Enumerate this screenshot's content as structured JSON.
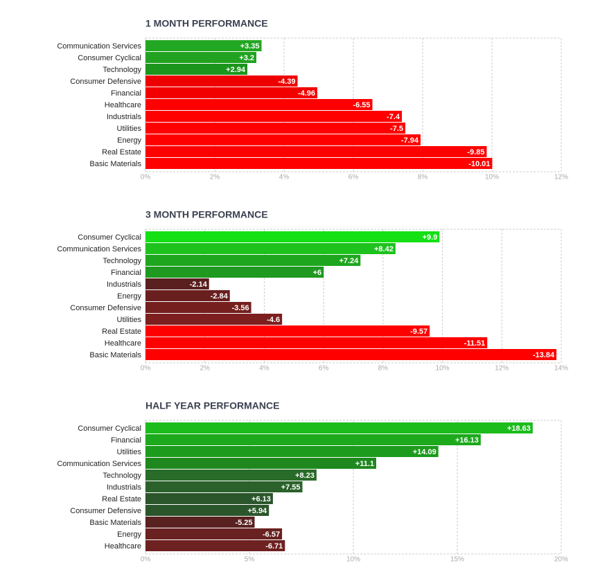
{
  "chart_data": [
    {
      "type": "bar",
      "orientation": "horizontal",
      "title": "1 MONTH PERFORMANCE",
      "categories": [
        "Communication Services",
        "Consumer Cyclical",
        "Technology",
        "Consumer Defensive",
        "Financial",
        "Healthcare",
        "Industrials",
        "Utilities",
        "Energy",
        "Real Estate",
        "Basic Materials"
      ],
      "values": [
        3.35,
        3.2,
        2.94,
        -4.39,
        -4.96,
        -6.55,
        -7.4,
        -7.5,
        -7.94,
        -9.85,
        -10.01
      ],
      "value_labels": [
        "+3.35",
        "+3.2",
        "+2.94",
        "-4.39",
        "-4.96",
        "-6.55",
        "-7.4",
        "-7.5",
        "-7.94",
        "-9.85",
        "-10.01"
      ],
      "colors": [
        "#22a722",
        "#21a321",
        "#1c951c",
        "#ee0000",
        "#f20000",
        "#ff0000",
        "#ff0000",
        "#ff0000",
        "#ff0000",
        "#ff0000",
        "#ff0000"
      ],
      "xlim": [
        0,
        12
      ],
      "xticks": [
        {
          "value": 0,
          "label": "0%"
        },
        {
          "value": 2,
          "label": "2%"
        },
        {
          "value": 4,
          "label": "4%"
        },
        {
          "value": 6,
          "label": "6%"
        },
        {
          "value": 8,
          "label": "8%"
        },
        {
          "value": 10,
          "label": "10%"
        },
        {
          "value": 12,
          "label": "12%"
        }
      ],
      "grid": true
    },
    {
      "type": "bar",
      "orientation": "horizontal",
      "title": "3 MONTH PERFORMANCE",
      "categories": [
        "Consumer Cyclical",
        "Communication Services",
        "Technology",
        "Financial",
        "Industrials",
        "Energy",
        "Consumer Defensive",
        "Utilities",
        "Real Estate",
        "Healthcare",
        "Basic Materials"
      ],
      "values": [
        9.9,
        8.42,
        7.24,
        6,
        -2.14,
        -2.84,
        -3.56,
        -4.6,
        -9.57,
        -11.51,
        -13.84
      ],
      "value_labels": [
        "+9.9",
        "+8.42",
        "+7.24",
        "+6",
        "-2.14",
        "-2.84",
        "-3.56",
        "-4.6",
        "-9.57",
        "-11.51",
        "-13.84"
      ],
      "colors": [
        "#14e014",
        "#1dc21d",
        "#1ea61e",
        "#1f991f",
        "#5a1f1f",
        "#6a1f1f",
        "#751f1f",
        "#7e1f1f",
        "#ff0000",
        "#ff0000",
        "#ff0000"
      ],
      "xlim": [
        0,
        14
      ],
      "xticks": [
        {
          "value": 0,
          "label": "0%"
        },
        {
          "value": 2,
          "label": "2%"
        },
        {
          "value": 4,
          "label": "4%"
        },
        {
          "value": 6,
          "label": "6%"
        },
        {
          "value": 8,
          "label": "8%"
        },
        {
          "value": 10,
          "label": "10%"
        },
        {
          "value": 12,
          "label": "12%"
        },
        {
          "value": 14,
          "label": "14%"
        }
      ],
      "grid": true
    },
    {
      "type": "bar",
      "orientation": "horizontal",
      "title": "HALF YEAR PERFORMANCE",
      "categories": [
        "Consumer Cyclical",
        "Financial",
        "Utilities",
        "Communication Services",
        "Technology",
        "Industrials",
        "Real Estate",
        "Consumer Defensive",
        "Basic Materials",
        "Energy",
        "Healthcare"
      ],
      "values": [
        18.63,
        16.13,
        14.09,
        11.1,
        8.23,
        7.55,
        6.13,
        5.94,
        -5.25,
        -6.57,
        -6.71
      ],
      "value_labels": [
        "+18.63",
        "+16.13",
        "+14.09",
        "+11.1",
        "+8.23",
        "+7.55",
        "+6.13",
        "+5.94",
        "-5.25",
        "-6.57",
        "-6.71"
      ],
      "colors": [
        "#1cbc1c",
        "#1ca91c",
        "#1c9b1c",
        "#1e881e",
        "#296b29",
        "#2b622b",
        "#2b562b",
        "#2b562b",
        "#5a2121",
        "#6a2121",
        "#6e2121"
      ],
      "xlim": [
        0,
        20
      ],
      "xticks": [
        {
          "value": 0,
          "label": "0%"
        },
        {
          "value": 5,
          "label": "5%"
        },
        {
          "value": 10,
          "label": "10%"
        },
        {
          "value": 15,
          "label": "15%"
        },
        {
          "value": 20,
          "label": "20%"
        }
      ],
      "grid": true
    }
  ]
}
